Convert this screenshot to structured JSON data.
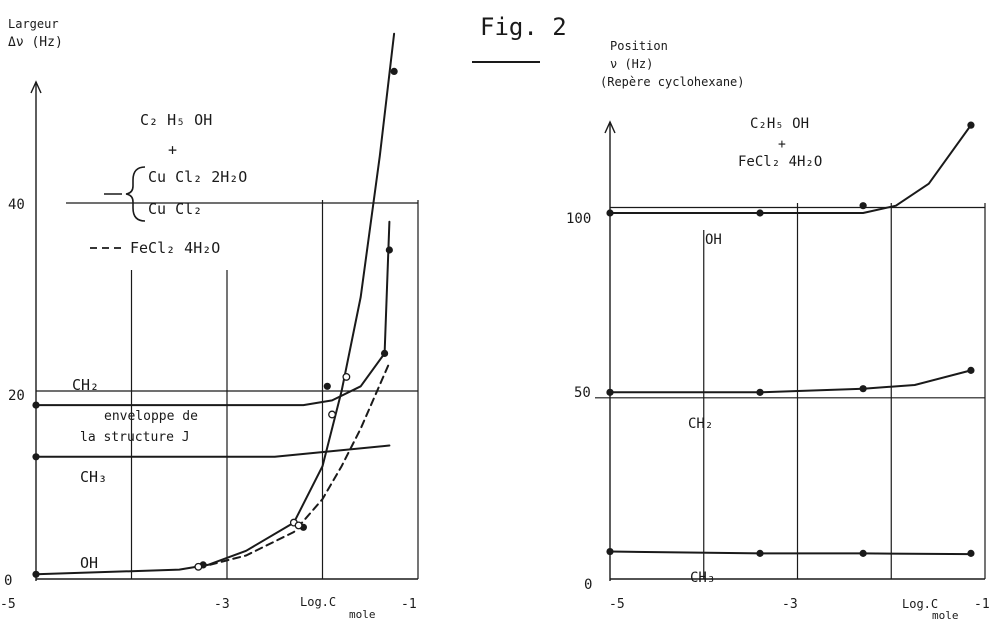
{
  "figure_label": "Fig. 2",
  "chart_data": [
    {
      "type": "line",
      "ylabel_line1": "Largeur",
      "ylabel_line2": "Δν (Hz)",
      "xlabel": "Log.C",
      "xlabel_unit": "mole",
      "xlim": [
        -5,
        -1
      ],
      "ylim": [
        0,
        40
      ],
      "x_ticks": [
        "-5",
        "-3",
        "-1"
      ],
      "y_ticks": [
        "0",
        "20",
        "40"
      ],
      "grid": true,
      "legend": {
        "line1": "C₂ H₅ OH",
        "line2": "+",
        "line3": "Cu Cl₂ 2H₂O",
        "line4": "Cu Cl₂",
        "line5": "FeCl₂ 4H₂O"
      },
      "annotations": {
        "ch2": "CH₂",
        "ch3": "CH₃",
        "oh": "OH",
        "env1": "enveloppe de",
        "env2": "la structure J"
      },
      "series": [
        {
          "key": "CH2",
          "style": "solid",
          "x": [
            -5,
            -2.2,
            -1.9,
            -1.6,
            -1.35,
            -1.3
          ],
          "y": [
            18.5,
            18.5,
            19,
            20.5,
            24,
            38
          ]
        },
        {
          "key": "CH3",
          "style": "solid",
          "x": [
            -5,
            -2.5,
            -1.3
          ],
          "y": [
            13,
            13,
            14.2
          ]
        },
        {
          "key": "OH",
          "style": "solid",
          "x": [
            -5,
            -3.5,
            -3.2,
            -2.8,
            -2.3,
            -2.0,
            -1.8,
            -1.6,
            -1.4,
            -1.25
          ],
          "y": [
            0.5,
            1,
            1.5,
            3,
            6,
            12,
            20,
            30,
            45,
            58
          ]
        },
        {
          "key": "FeCl2",
          "style": "dashed",
          "x": [
            -3.3,
            -2.8,
            -2.3,
            -2.0,
            -1.8,
            -1.6,
            -1.3
          ],
          "y": [
            1.2,
            2.5,
            5,
            8.5,
            12,
            16,
            23
          ]
        }
      ],
      "points_filled": [
        [
          -5,
          0.5
        ],
        [
          -5,
          18.5
        ],
        [
          -5,
          13
        ],
        [
          -3.25,
          1.5
        ],
        [
          -2.2,
          5.5
        ],
        [
          -1.95,
          20.5
        ],
        [
          -1.35,
          24
        ],
        [
          -1.3,
          35
        ],
        [
          -1.25,
          54
        ]
      ],
      "points_open": [
        [
          -3.3,
          1.3
        ],
        [
          -2.3,
          6
        ],
        [
          -2.25,
          5.7
        ],
        [
          -1.9,
          17.5
        ],
        [
          -1.75,
          21.5
        ]
      ]
    },
    {
      "type": "line",
      "ylabel_line1": "Position",
      "ylabel_line2": "ν (Hz)",
      "ylabel_line3": "(Repère cyclohexane)",
      "xlabel": "Log.C",
      "xlabel_unit": "mole",
      "xlim": [
        -5,
        -1
      ],
      "ylim": [
        0,
        100
      ],
      "x_ticks": [
        "-5",
        "-3",
        "-1"
      ],
      "y_ticks": [
        "0",
        "50",
        "100"
      ],
      "grid": true,
      "legend": {
        "line1": "C₂H₅ OH",
        "line2": "+",
        "line3": "FeCl₂ 4H₂O"
      },
      "annotations": {
        "oh": "OH",
        "ch2": "CH₂",
        "ch3": "CH₃"
      },
      "series": [
        {
          "key": "OH",
          "x": [
            -5,
            -3.4,
            -2.3,
            -1.95,
            -1.6,
            -1.15
          ],
          "y": [
            100,
            100,
            100,
            102,
            108,
            124
          ]
        },
        {
          "key": "CH2",
          "x": [
            -5,
            -3.4,
            -2.3,
            -1.75,
            -1.15
          ],
          "y": [
            51,
            51,
            52,
            53,
            57
          ]
        },
        {
          "key": "CH3",
          "x": [
            -5,
            -3.4,
            -2.3,
            -1.15
          ],
          "y": [
            7.5,
            7,
            7,
            6.8
          ]
        }
      ],
      "points_filled": [
        [
          -5,
          100
        ],
        [
          -3.4,
          100
        ],
        [
          -2.3,
          102
        ],
        [
          -1.15,
          124
        ],
        [
          -5,
          51
        ],
        [
          -3.4,
          51
        ],
        [
          -2.3,
          52
        ],
        [
          -1.15,
          57
        ],
        [
          -5,
          7.5
        ],
        [
          -3.4,
          7
        ],
        [
          -2.3,
          7
        ],
        [
          -1.15,
          7
        ]
      ]
    }
  ]
}
